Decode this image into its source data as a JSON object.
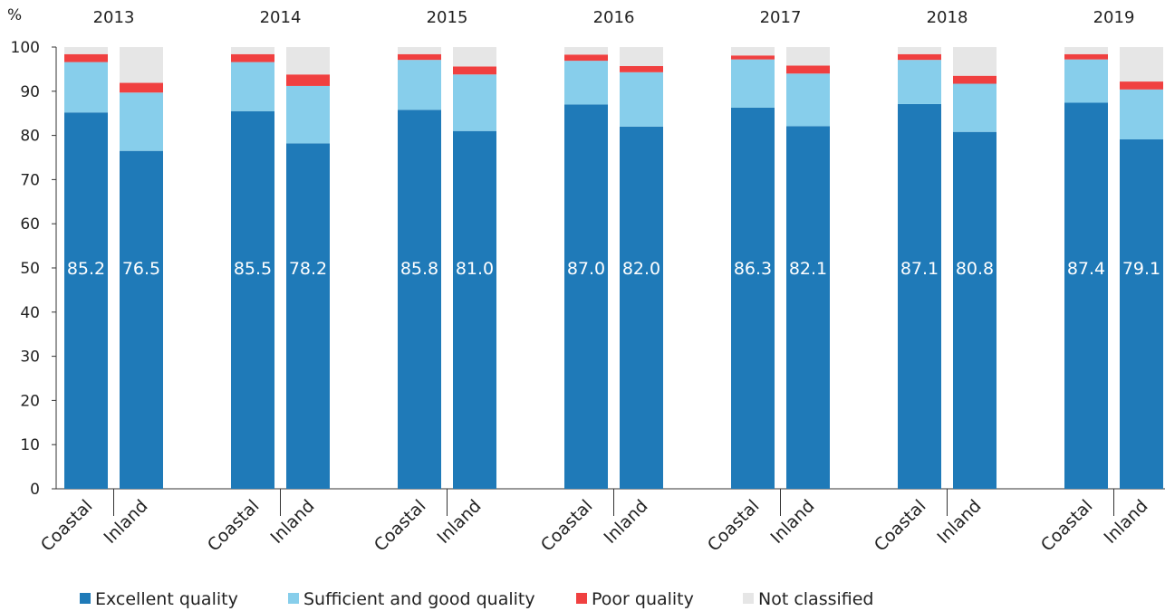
{
  "chart_data": {
    "type": "bar",
    "stacked": true,
    "unit_label": "%",
    "ylim": [
      0,
      100
    ],
    "yticks": [
      0,
      10,
      20,
      30,
      40,
      50,
      60,
      70,
      80,
      90,
      100
    ],
    "grid": false,
    "legend_position": "bottom",
    "groups": [
      "2013",
      "2014",
      "2015",
      "2016",
      "2017",
      "2018",
      "2019"
    ],
    "subcategories": [
      "Coastal",
      "Inland"
    ],
    "bars": [
      {
        "group": "2013",
        "category": "Coastal",
        "excellent": 85.2,
        "sufficient_good": 11.4,
        "poor": 1.8,
        "not_classified": 1.6
      },
      {
        "group": "2013",
        "category": "Inland",
        "excellent": 76.5,
        "sufficient_good": 13.2,
        "poor": 2.2,
        "not_classified": 8.1
      },
      {
        "group": "2014",
        "category": "Coastal",
        "excellent": 85.5,
        "sufficient_good": 11.1,
        "poor": 1.8,
        "not_classified": 1.6
      },
      {
        "group": "2014",
        "category": "Inland",
        "excellent": 78.2,
        "sufficient_good": 13.0,
        "poor": 2.6,
        "not_classified": 6.2
      },
      {
        "group": "2015",
        "category": "Coastal",
        "excellent": 85.8,
        "sufficient_good": 11.3,
        "poor": 1.3,
        "not_classified": 1.6
      },
      {
        "group": "2015",
        "category": "Inland",
        "excellent": 81.0,
        "sufficient_good": 12.8,
        "poor": 1.8,
        "not_classified": 4.4
      },
      {
        "group": "2016",
        "category": "Coastal",
        "excellent": 87.0,
        "sufficient_good": 9.9,
        "poor": 1.4,
        "not_classified": 1.7
      },
      {
        "group": "2016",
        "category": "Inland",
        "excellent": 82.0,
        "sufficient_good": 12.3,
        "poor": 1.4,
        "not_classified": 4.3
      },
      {
        "group": "2017",
        "category": "Coastal",
        "excellent": 86.3,
        "sufficient_good": 10.9,
        "poor": 0.9,
        "not_classified": 1.9
      },
      {
        "group": "2017",
        "category": "Inland",
        "excellent": 82.1,
        "sufficient_good": 11.9,
        "poor": 1.8,
        "not_classified": 4.2
      },
      {
        "group": "2018",
        "category": "Coastal",
        "excellent": 87.1,
        "sufficient_good": 10.0,
        "poor": 1.3,
        "not_classified": 1.6
      },
      {
        "group": "2018",
        "category": "Inland",
        "excellent": 80.8,
        "sufficient_good": 10.9,
        "poor": 1.8,
        "not_classified": 6.5
      },
      {
        "group": "2019",
        "category": "Coastal",
        "excellent": 87.4,
        "sufficient_good": 9.8,
        "poor": 1.2,
        "not_classified": 1.6
      },
      {
        "group": "2019",
        "category": "Inland",
        "excellent": 79.1,
        "sufficient_good": 11.3,
        "poor": 1.8,
        "not_classified": 7.8
      }
    ],
    "series": [
      {
        "key": "excellent",
        "name": "Excellent quality",
        "color": "#1f7ab8"
      },
      {
        "key": "sufficient_good",
        "name": "Sufficient and good quality",
        "color": "#87ceeb"
      },
      {
        "key": "poor",
        "name": "Poor quality",
        "color": "#f04040"
      },
      {
        "key": "not_classified",
        "name": "Not classified",
        "color": "#e6e6e6"
      }
    ],
    "data_labels_series": "excellent"
  }
}
